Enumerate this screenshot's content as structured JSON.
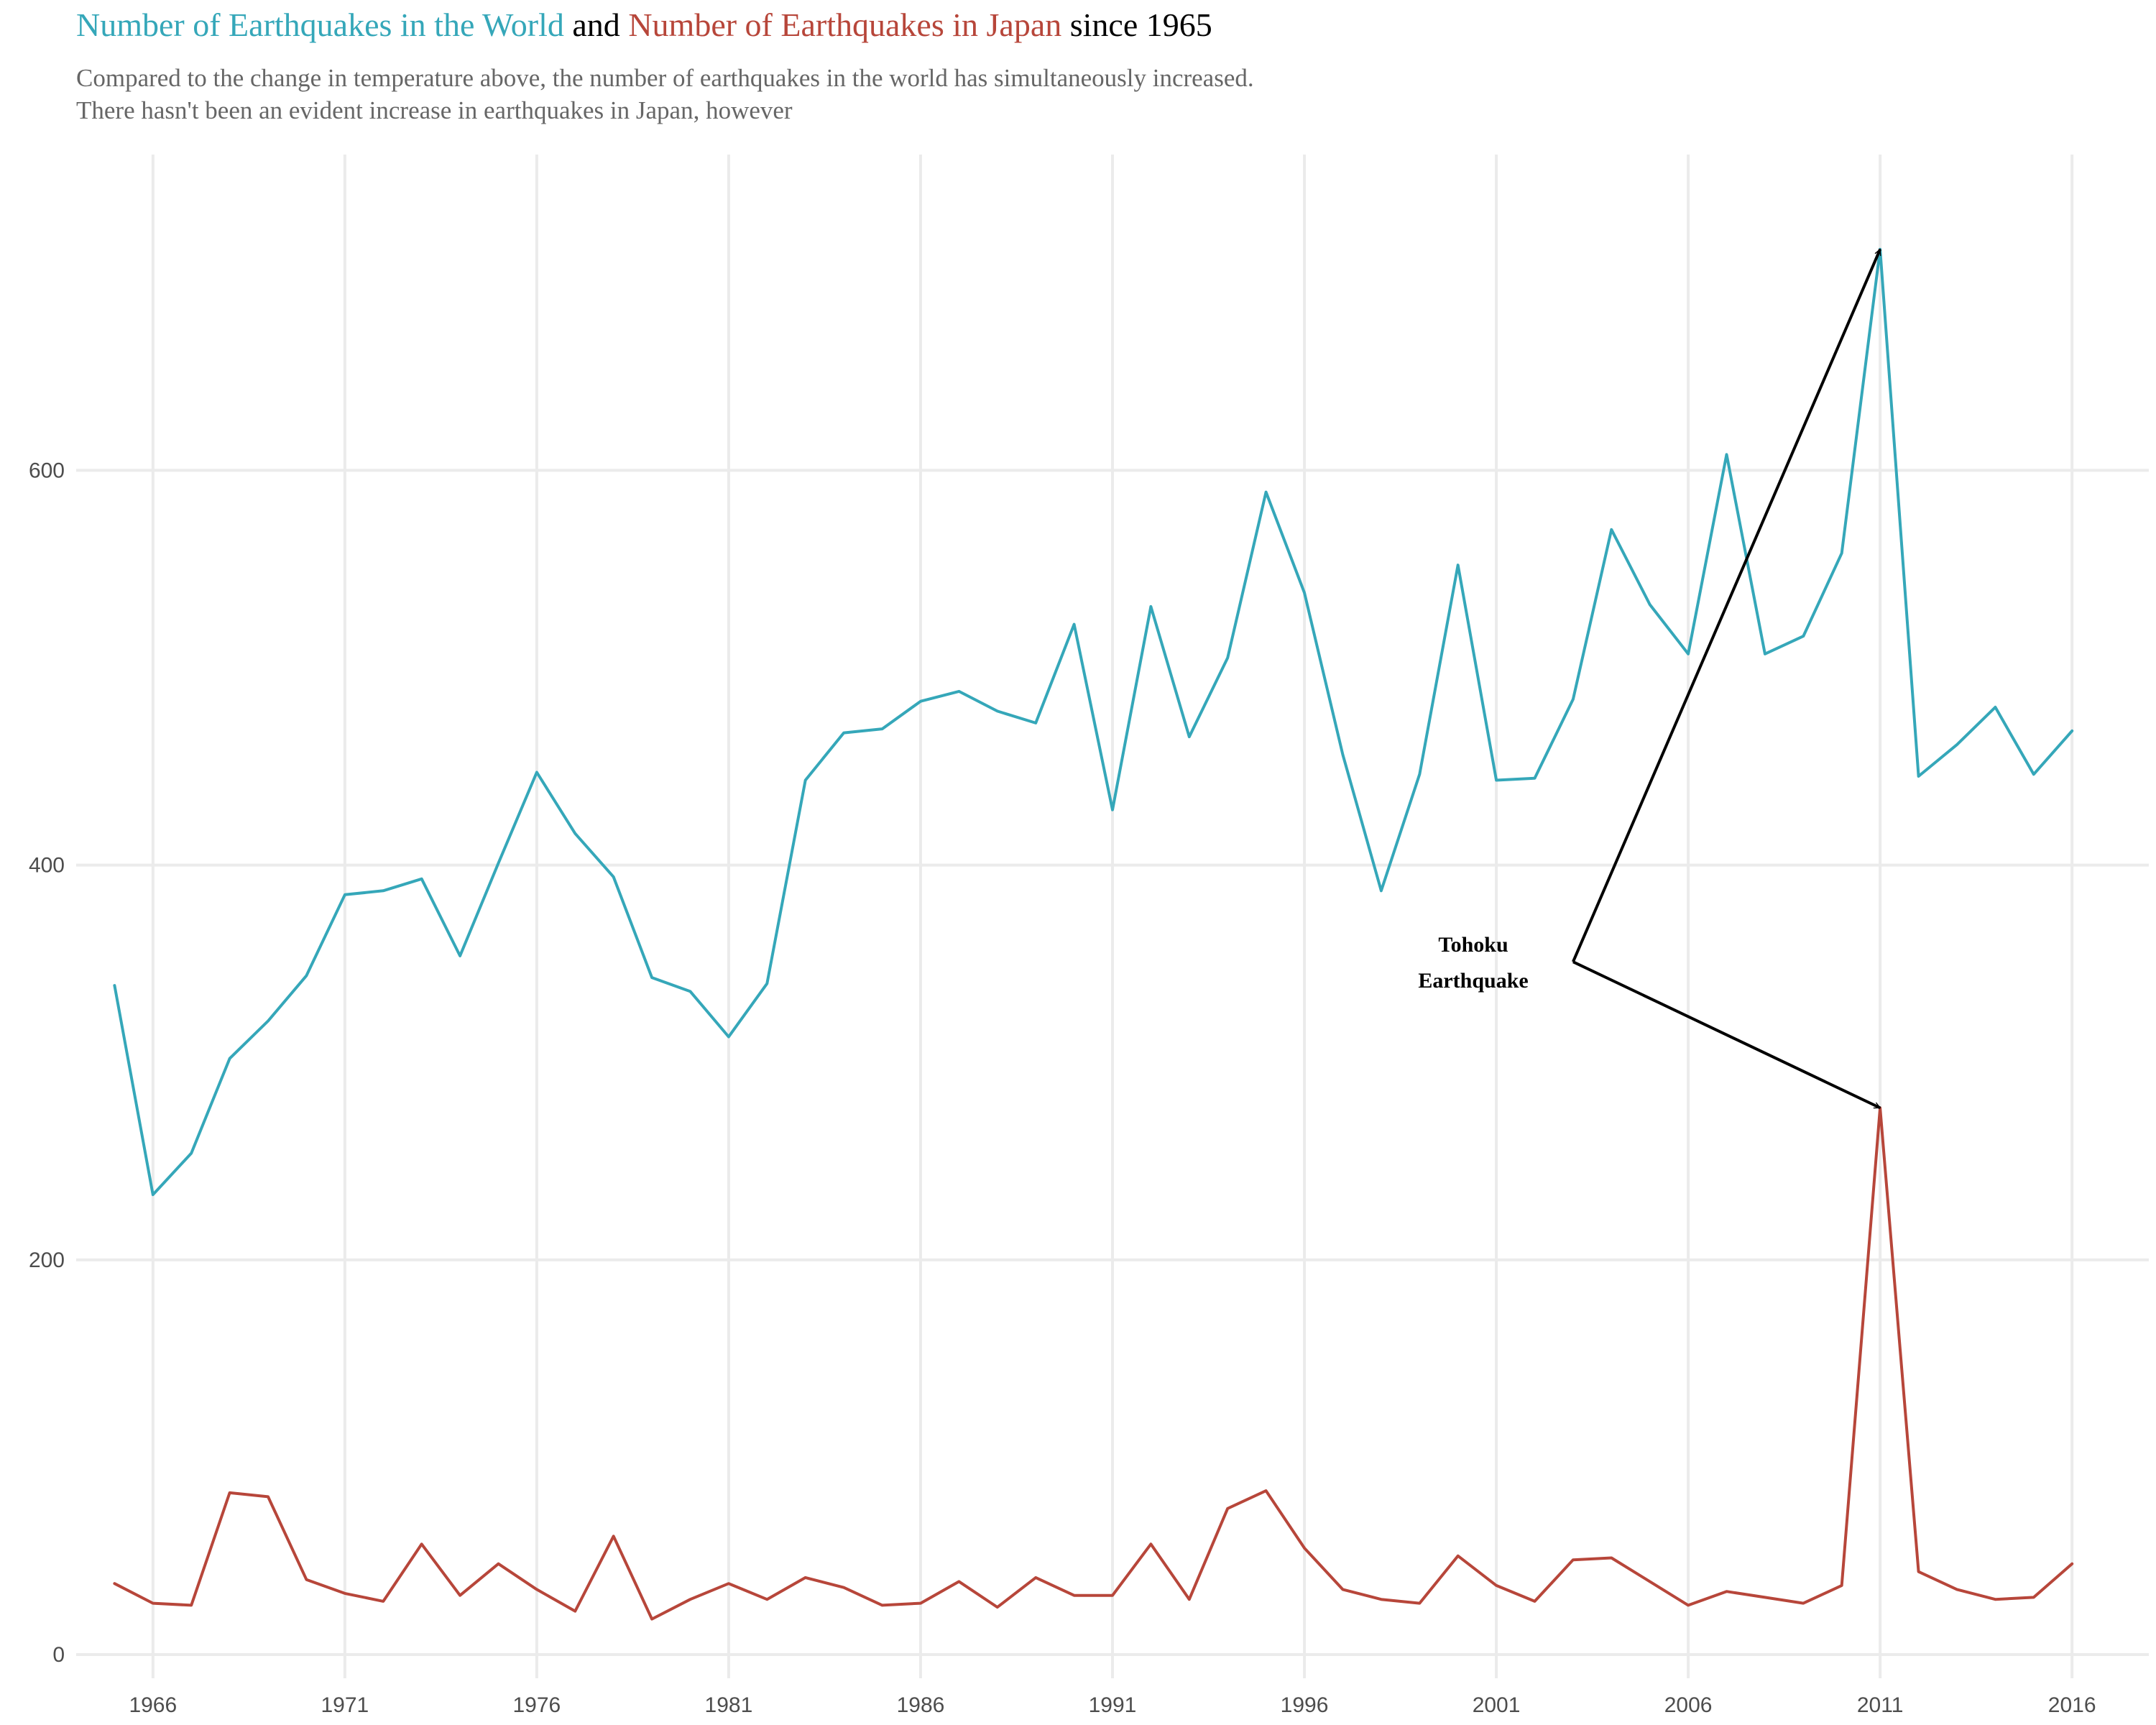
{
  "title": {
    "part1": "Number of Earthquakes in the World",
    "part2": " and ",
    "part3": "Number of Earthquakes in Japan",
    "part4": " since 1965"
  },
  "subtitle": {
    "line1": "Compared to the change in temperature above, the number of earthquakes in the world has simultaneously increased.",
    "line2": "There hasn't been an evident increase in earthquakes in Japan, however"
  },
  "colors": {
    "world": "#35a7b9",
    "japan": "#b7463a",
    "grid": "#ebebeb",
    "annotation": "#000000"
  },
  "chart_data": {
    "type": "line",
    "x": [
      1965,
      1966,
      1967,
      1968,
      1969,
      1970,
      1971,
      1972,
      1973,
      1974,
      1975,
      1976,
      1977,
      1978,
      1979,
      1980,
      1981,
      1982,
      1983,
      1984,
      1985,
      1986,
      1987,
      1988,
      1989,
      1990,
      1991,
      1992,
      1993,
      1994,
      1995,
      1996,
      1997,
      1998,
      1999,
      2000,
      2001,
      2002,
      2003,
      2004,
      2005,
      2006,
      2007,
      2008,
      2009,
      2010,
      2011,
      2012,
      2013,
      2014,
      2015,
      2016
    ],
    "series": [
      {
        "key": "world",
        "values": [
          339,
          233,
          254,
          302,
          321,
          344,
          385,
          387,
          393,
          354,
          401,
          447,
          416,
          394,
          343,
          336,
          313,
          340,
          443,
          467,
          469,
          483,
          488,
          478,
          472,
          522,
          428,
          531,
          465,
          505,
          589,
          538,
          456,
          387,
          446,
          552,
          443,
          444,
          484,
          570,
          532,
          507,
          608,
          507,
          516,
          558,
          712,
          445,
          461,
          480,
          446,
          468
        ]
      },
      {
        "key": "japan",
        "values": [
          36,
          26,
          25,
          82,
          80,
          38,
          31,
          27,
          56,
          30,
          46,
          33,
          22,
          60,
          18,
          28,
          36,
          28,
          39,
          34,
          25,
          26,
          37,
          24,
          39,
          30,
          30,
          56,
          28,
          74,
          83,
          54,
          33,
          28,
          26,
          50,
          35,
          27,
          48,
          49,
          37,
          25,
          32,
          29,
          26,
          35,
          277,
          42,
          33,
          28,
          29,
          46
        ]
      }
    ],
    "xticks": [
      "1966",
      "1971",
      "1976",
      "1981",
      "1986",
      "1991",
      "1996",
      "2001",
      "2006",
      "2011",
      "2016"
    ],
    "yticks": [
      "0",
      "200",
      "400",
      "600"
    ],
    "xlim": [
      1964,
      2018
    ],
    "ylim": [
      -12,
      760
    ],
    "grid": true,
    "annotation": {
      "line1": "Tohoku",
      "line2": "Earthquake",
      "anchor": [
        2003,
        351
      ],
      "targets": [
        [
          2011,
          712
        ],
        [
          2011,
          277
        ]
      ]
    }
  }
}
